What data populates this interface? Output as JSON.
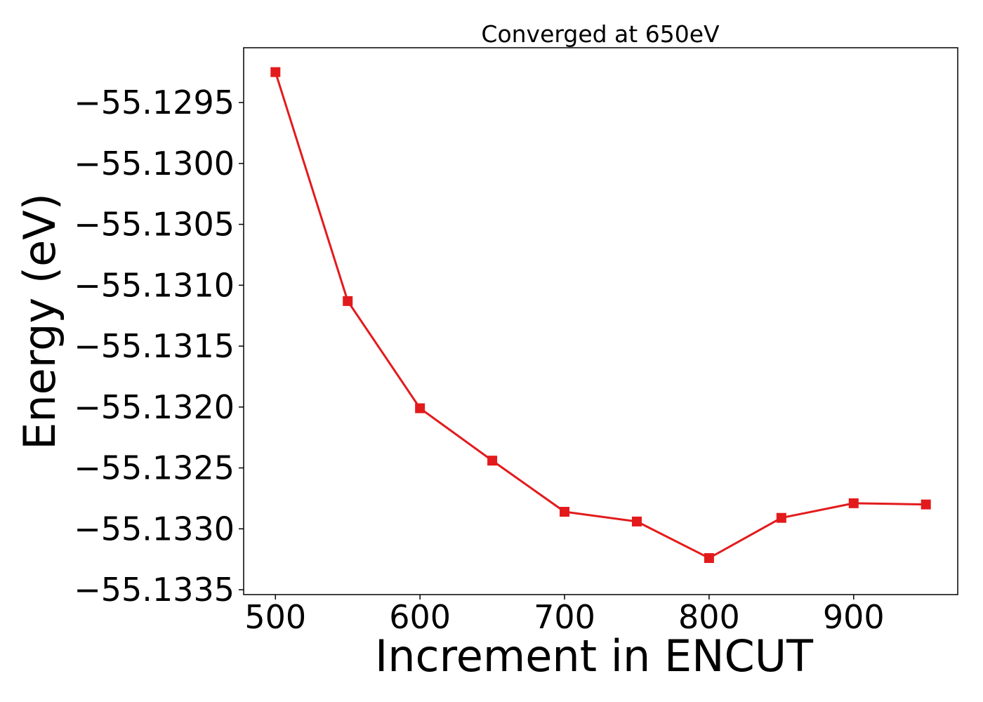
{
  "chart_data": {
    "type": "line",
    "title": "Converged at 650eV",
    "xlabel": "Increment in ENCUT",
    "ylabel": "Energy (eV)",
    "x": [
      500,
      550,
      600,
      650,
      700,
      750,
      800,
      850,
      900,
      950
    ],
    "series": [
      {
        "color": "#e31a1c",
        "marker": "square",
        "values": [
          -55.12925,
          -55.13113,
          -55.13201,
          -55.13244,
          -55.13286,
          -55.13294,
          -55.13324,
          -55.13291,
          -55.13279,
          -55.1328
        ]
      }
    ],
    "xlim": [
      478,
      972
    ],
    "ylim": [
      -55.13354,
      -55.12905
    ],
    "x_ticks": [
      500,
      600,
      700,
      800,
      900
    ],
    "x_tick_labels": [
      "500",
      "600",
      "700",
      "800",
      "900"
    ],
    "y_ticks": [
      -55.1295,
      -55.13,
      -55.1305,
      -55.131,
      -55.1315,
      -55.132,
      -55.1325,
      -55.133,
      -55.1335
    ],
    "y_tick_labels": [
      "−55.1295",
      "−55.1300",
      "−55.1305",
      "−55.1310",
      "−55.1315",
      "−55.1320",
      "−55.1325",
      "−55.1330",
      "−55.1335"
    ],
    "grid": false,
    "legend": "none"
  }
}
